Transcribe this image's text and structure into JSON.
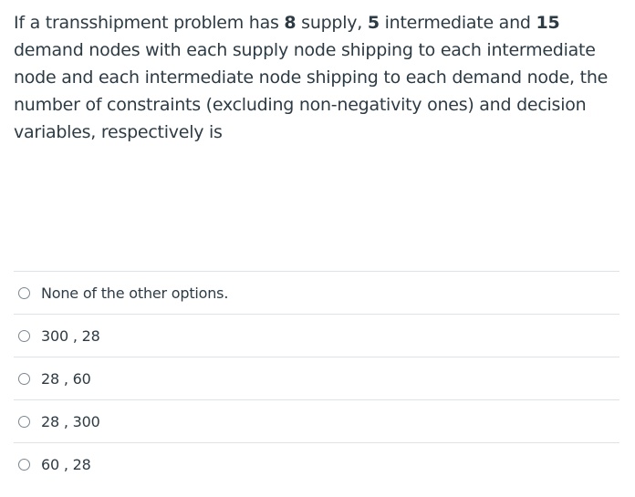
{
  "question": {
    "t1": "If a transshipment problem has ",
    "supply_count": "8",
    "t2": " supply, ",
    "intermediate_count": "5",
    "t3": " intermediate and ",
    "demand_count": "15",
    "t4": " demand nodes with each supply node shipping to each intermediate node and each intermediate node shipping to each demand node, the number of constraints (excluding non-negativity ones) and decision variables, respectively is"
  },
  "answers": [
    {
      "label": "None of the other options."
    },
    {
      "label": "300 , 28"
    },
    {
      "label": "28 , 60"
    },
    {
      "label": "28 , 300"
    },
    {
      "label": "60 , 28"
    }
  ]
}
